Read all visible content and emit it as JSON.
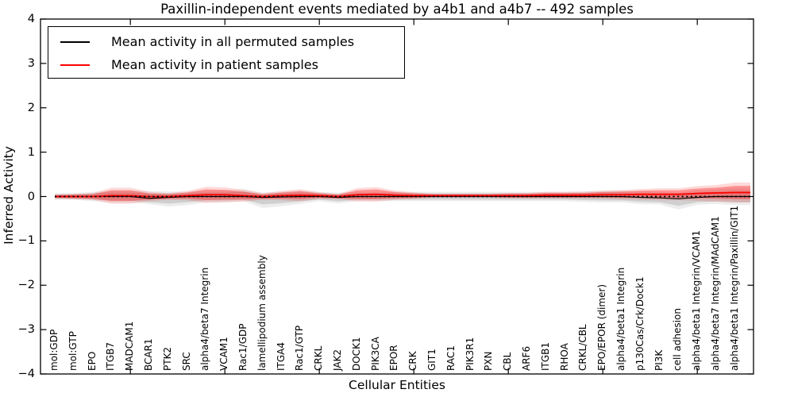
{
  "title": "Paxillin-independent events mediated by a4b1 and a4b7 -- 492 samples",
  "axes": {
    "ylabel": "Inferred Activity",
    "xlabel": "Cellular Entities",
    "yticks": [
      "4",
      "3",
      "2",
      "1",
      "0",
      "−1",
      "−2",
      "−3",
      "−4"
    ],
    "ytick_values": [
      4,
      3,
      2,
      1,
      0,
      -1,
      -2,
      -3,
      -4
    ]
  },
  "legend": {
    "items": [
      {
        "label": "Mean activity in all permuted samples",
        "color": "#000000"
      },
      {
        "label": "Mean activity in patient samples",
        "color": "#ff0000"
      }
    ]
  },
  "colors": {
    "background": "#ffffff",
    "text": "#000000",
    "frame": "#000000",
    "permuted_line": "#000000",
    "patient_line": "#ff0000",
    "permuted_band": "#808080",
    "patient_band": "#ff0000"
  },
  "chart_data": {
    "type": "line",
    "title": "Paxillin-independent events mediated by a4b1 and a4b7 -- 492 samples",
    "xlabel": "Cellular Entities",
    "ylabel": "Inferred Activity",
    "ylim": [
      -4,
      4
    ],
    "grid": false,
    "legend_position": "upper left",
    "baseline": {
      "value": 0,
      "style": "dotted",
      "color": "#000000"
    },
    "xtick_positions": [
      5,
      10,
      15,
      20,
      25,
      30,
      35
    ],
    "categories": [
      "mol:GDP",
      "mol:GTP",
      "EPO",
      "ITGB7",
      "MADCAM1",
      "BCAR1",
      "PTK2",
      "SRC",
      "alpha4/beta7 Integrin",
      "VCAM1",
      "Rac1/GDP",
      "lamellipodium assembly",
      "ITGA4",
      "Rac1/GTP",
      "CRKL",
      "JAK2",
      "DOCK1",
      "PIK3CA",
      "EPOR",
      "CRK",
      "GIT1",
      "RAC1",
      "PIK3R1",
      "PXN",
      "CBL",
      "ARF6",
      "ITGB1",
      "RHOA",
      "CRKL/CBL",
      "EPO/EPOR (dimer)",
      "alpha4/beta1 Integrin",
      "p130Cas/Crk/Dock1",
      "PI3K",
      "cell adhesion",
      "alpha4/beta1 Integrin/VCAM1",
      "alpha4/beta7 Integrin/MAdCAM1",
      "alpha4/beta1 Integrin/Paxillin/GIT1"
    ],
    "series": [
      {
        "name": "Mean activity in all permuted samples",
        "color": "#000000",
        "style": "solid",
        "values": [
          0,
          0,
          0,
          0,
          0,
          -0.04,
          -0.02,
          0,
          0,
          0,
          0,
          -0.02,
          -0.01,
          0,
          0,
          -0.02,
          0,
          0,
          0,
          0,
          0,
          0,
          0,
          0,
          0,
          0,
          0,
          0,
          0,
          0,
          0,
          -0.02,
          -0.03,
          -0.05,
          -0.02,
          0,
          0
        ]
      },
      {
        "name": "Mean activity in patient samples",
        "color": "#ff0000",
        "style": "solid",
        "values": [
          0,
          0,
          0,
          0.02,
          0.02,
          0,
          0,
          0.02,
          0.04,
          0.04,
          0.02,
          0,
          0.02,
          0.03,
          0.02,
          0,
          0.04,
          0.05,
          0.03,
          0.02,
          0.02,
          0.02,
          0.02,
          0.02,
          0.02,
          0.02,
          0.03,
          0.03,
          0.03,
          0.04,
          0.04,
          0.05,
          0.05,
          0.05,
          0.07,
          0.08,
          0.09
        ]
      }
    ],
    "bands": [
      {
        "name": "permuted samples range",
        "color": "#808080",
        "upper": [
          0.05,
          0.05,
          0.07,
          0.09,
          0.09,
          0.07,
          0.07,
          0.07,
          0.09,
          0.09,
          0.11,
          0.05,
          0.07,
          0.09,
          0.07,
          0.05,
          0.07,
          0.07,
          0.07,
          0.07,
          0.07,
          0.07,
          0.07,
          0.07,
          0.07,
          0.07,
          0.07,
          0.07,
          0.08,
          0.09,
          0.09,
          0.07,
          0.06,
          0.04,
          0.09,
          0.11,
          0.13
        ],
        "lower": [
          -0.05,
          -0.05,
          -0.07,
          -0.09,
          -0.09,
          -0.13,
          -0.16,
          -0.13,
          -0.09,
          -0.09,
          -0.07,
          -0.18,
          -0.15,
          -0.11,
          -0.07,
          -0.11,
          -0.07,
          -0.07,
          -0.07,
          -0.07,
          -0.07,
          -0.07,
          -0.07,
          -0.07,
          -0.07,
          -0.07,
          -0.07,
          -0.07,
          -0.08,
          -0.09,
          -0.09,
          -0.12,
          -0.13,
          -0.21,
          -0.13,
          -0.11,
          -0.13
        ]
      },
      {
        "name": "patient samples range",
        "color": "#ff0000",
        "upper": [
          0.03,
          0.04,
          0.05,
          0.14,
          0.14,
          0.07,
          0.05,
          0.09,
          0.16,
          0.15,
          0.11,
          0.05,
          0.09,
          0.12,
          0.07,
          0.04,
          0.14,
          0.16,
          0.1,
          0.07,
          0.05,
          0.05,
          0.05,
          0.05,
          0.06,
          0.06,
          0.08,
          0.08,
          0.08,
          0.1,
          0.11,
          0.13,
          0.14,
          0.14,
          0.18,
          0.2,
          0.24
        ],
        "lower": [
          -0.03,
          -0.04,
          -0.05,
          -0.1,
          -0.1,
          -0.07,
          -0.05,
          -0.05,
          -0.08,
          -0.07,
          -0.07,
          -0.05,
          -0.05,
          -0.06,
          -0.03,
          -0.04,
          -0.06,
          -0.06,
          -0.04,
          -0.03,
          -0.01,
          -0.01,
          -0.01,
          -0.01,
          -0.02,
          -0.02,
          -0.02,
          -0.02,
          -0.02,
          -0.02,
          -0.03,
          -0.03,
          -0.04,
          -0.04,
          -0.04,
          -0.05,
          -0.06
        ]
      }
    ]
  }
}
